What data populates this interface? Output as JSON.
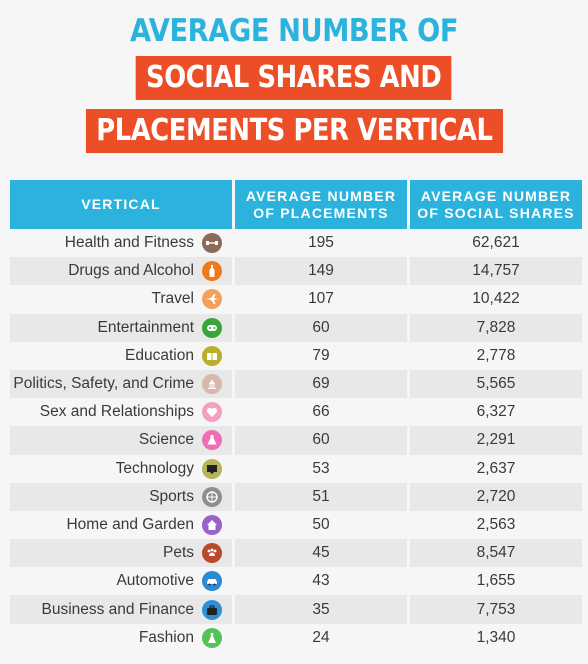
{
  "title": {
    "line1": "AVERAGE NUMBER OF",
    "line2": "SOCIAL SHARES AND",
    "line3": "PLACEMENTS PER VERTICAL"
  },
  "colors": {
    "title_blue": "#2bb3dd",
    "ribbon_orange": "#ec4f28",
    "header_blue": "#2bb3dd"
  },
  "chart_data": {
    "type": "table",
    "columns": [
      "VERTICAL",
      "AVERAGE NUMBER OF PLACEMENTS",
      "AVERAGE NUMBER OF SOCIAL SHARES"
    ],
    "header": {
      "vertical": "VERTICAL",
      "placements_l1": "AVERAGE NUMBER",
      "placements_l2": "OF PLACEMENTS",
      "shares_l1": "AVERAGE NUMBER",
      "shares_l2": "OF SOCIAL SHARES"
    },
    "rows": [
      {
        "vertical": "Health and Fitness",
        "placements": "195",
        "shares": "62,621",
        "icon": "dumbbell-icon",
        "icon_color": "#8a6a5a"
      },
      {
        "vertical": "Drugs and Alcohol",
        "placements": "149",
        "shares": "14,757",
        "icon": "bottle-icon",
        "icon_color": "#f07a1a"
      },
      {
        "vertical": "Travel",
        "placements": "107",
        "shares": "10,422",
        "icon": "airplane-icon",
        "icon_color": "#f5a05a"
      },
      {
        "vertical": "Entertainment",
        "placements": "60",
        "shares": "7,828",
        "icon": "gamepad-icon",
        "icon_color": "#3aa63a"
      },
      {
        "vertical": "Education",
        "placements": "79",
        "shares": "2,778",
        "icon": "book-icon",
        "icon_color": "#b9b02a"
      },
      {
        "vertical": "Politics, Safety, and Crime",
        "placements": "69",
        "shares": "5,565",
        "icon": "capitol-icon",
        "icon_color": "#d9b7a8"
      },
      {
        "vertical": "Sex and Relationships",
        "placements": "66",
        "shares": "6,327",
        "icon": "heart-icon",
        "icon_color": "#f2a0c0"
      },
      {
        "vertical": "Science",
        "placements": "60",
        "shares": "2,291",
        "icon": "flask-icon",
        "icon_color": "#ee6fb4"
      },
      {
        "vertical": "Technology",
        "placements": "53",
        "shares": "2,637",
        "icon": "monitor-icon",
        "icon_color": "#b7b35a"
      },
      {
        "vertical": "Sports",
        "placements": "51",
        "shares": "2,720",
        "icon": "ball-icon",
        "icon_color": "#8e8e8e"
      },
      {
        "vertical": "Home and Garden",
        "placements": "50",
        "shares": "2,563",
        "icon": "house-icon",
        "icon_color": "#9b62c9"
      },
      {
        "vertical": "Pets",
        "placements": "45",
        "shares": "8,547",
        "icon": "paw-icon",
        "icon_color": "#b84a2e"
      },
      {
        "vertical": "Automotive",
        "placements": "43",
        "shares": "1,655",
        "icon": "car-icon",
        "icon_color": "#2b8ad0"
      },
      {
        "vertical": "Business and Finance",
        "placements": "35",
        "shares": "7,753",
        "icon": "briefcase-icon",
        "icon_color": "#2f8fd6"
      },
      {
        "vertical": "Fashion",
        "placements": "24",
        "shares": "1,340",
        "icon": "dress-icon",
        "icon_color": "#52c25a"
      }
    ]
  }
}
